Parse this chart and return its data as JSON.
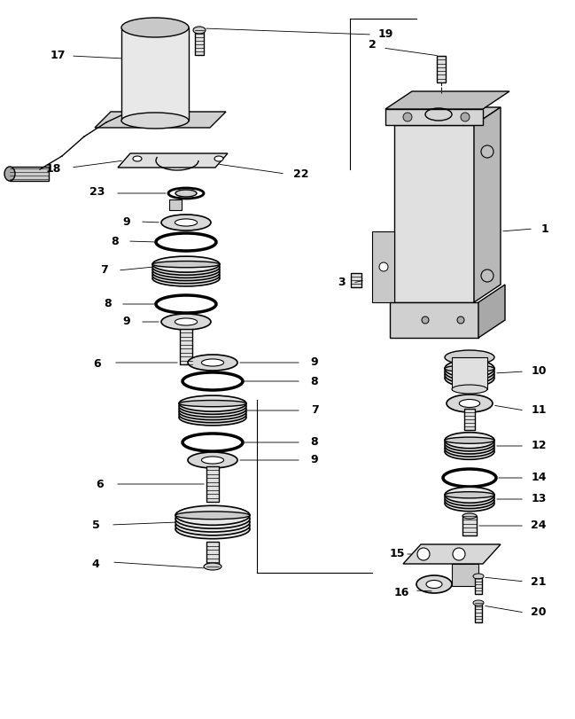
{
  "bg_color": "#ffffff",
  "line_color": "#000000",
  "figsize": [
    6.49,
    8.11
  ],
  "dpi": 100
}
